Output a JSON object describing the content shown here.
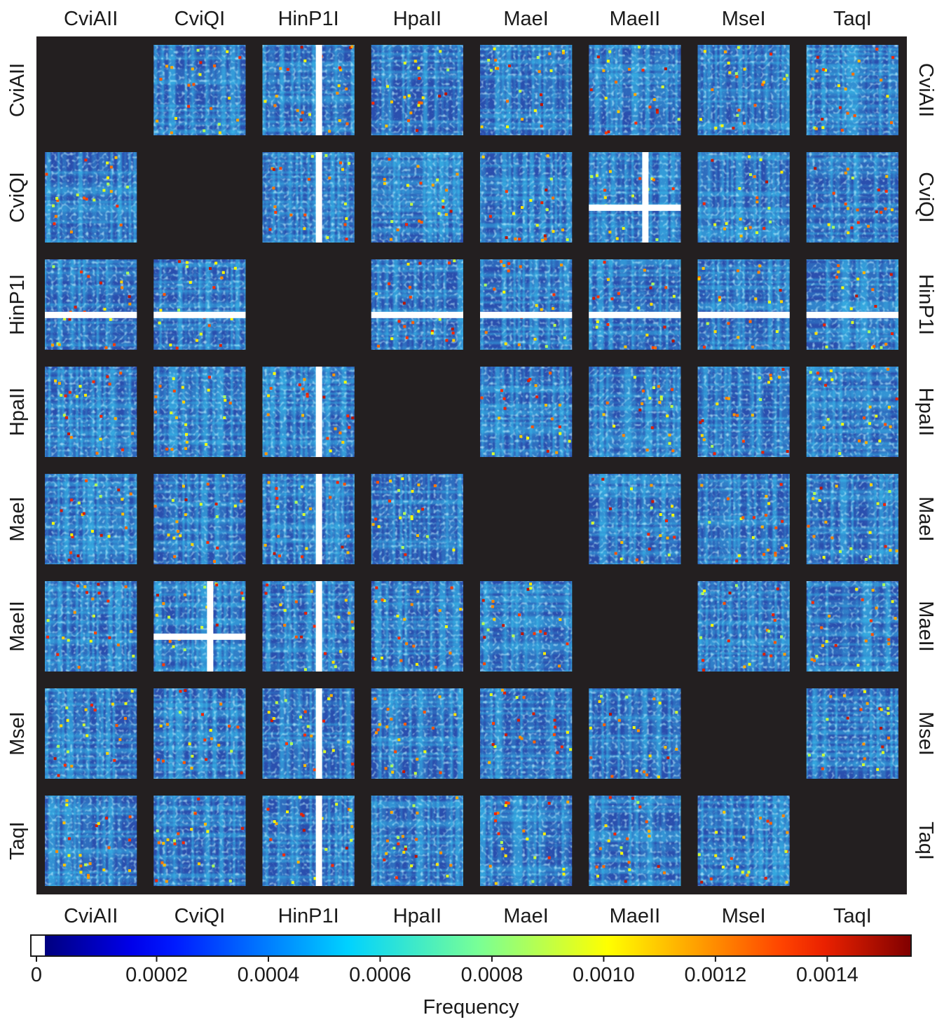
{
  "chart_data": {
    "type": "heatmap",
    "layout": "pairwise matrix of heatmaps (diagonal empty)",
    "enzymes": [
      "CviAII",
      "CviQI",
      "HinP1I",
      "HpaII",
      "MaeI",
      "MaeII",
      "MseI",
      "TaqI"
    ],
    "top_labels": [
      "CviAII",
      "CviQI",
      "HinP1I",
      "HpaII",
      "MaeI",
      "MaeII",
      "MseI",
      "TaqI"
    ],
    "bottom_labels": [
      "CviAII",
      "CviQI",
      "HinP1I",
      "HpaII",
      "MaeI",
      "MaeII",
      "MseI",
      "TaqI"
    ],
    "left_labels": [
      "CviAII",
      "CviQI",
      "HinP1I",
      "HpaII",
      "MaeI",
      "MaeII",
      "MseI",
      "TaqI"
    ],
    "right_labels": [
      "CviAII",
      "CviQI",
      "HinP1I",
      "HpaII",
      "MaeI",
      "MaeII",
      "MseI",
      "TaqI"
    ],
    "background_color": "#231f20",
    "colorbar": {
      "label": "Frequency",
      "range": [
        0,
        0.00155
      ],
      "zero_color": "#ffffff",
      "colormap": "jet",
      "ticks": [
        0,
        0.0002,
        0.0004,
        0.0006,
        0.0008,
        0.001,
        0.0012,
        0.0014
      ],
      "tick_labels": [
        "0",
        "0.0002",
        "0.0004",
        "0.0006",
        "0.0008",
        "0.0010",
        "0.0012",
        "0.0014"
      ]
    },
    "thick_gap_lines": [
      {
        "panel": "CviAII-HinP1I",
        "orientation": "vertical"
      },
      {
        "panel": "CviQI-HinP1I",
        "orientation": "vertical"
      },
      {
        "panel": "CviQI-MaeII",
        "orientation": "vertical"
      },
      {
        "panel": "CviQI-MaeII",
        "orientation": "horizontal"
      },
      {
        "panel": "HinP1I-CviAII",
        "orientation": "horizontal"
      },
      {
        "panel": "HinP1I-CviQI",
        "orientation": "horizontal"
      },
      {
        "panel": "HinP1I-HpaII",
        "orientation": "horizontal"
      },
      {
        "panel": "HinP1I-MaeI",
        "orientation": "horizontal"
      },
      {
        "panel": "HinP1I-MaeII",
        "orientation": "horizontal"
      },
      {
        "panel": "HinP1I-MseI",
        "orientation": "horizontal"
      },
      {
        "panel": "HinP1I-TaqI",
        "orientation": "horizontal"
      },
      {
        "panel": "HpaII-HinP1I",
        "orientation": "vertical"
      },
      {
        "panel": "MaeI-HinP1I",
        "orientation": "vertical"
      },
      {
        "panel": "MaeII-CviQI",
        "orientation": "vertical"
      },
      {
        "panel": "MaeII-CviQI",
        "orientation": "horizontal"
      },
      {
        "panel": "MaeII-HinP1I",
        "orientation": "vertical"
      },
      {
        "panel": "MseI-HinP1I",
        "orientation": "vertical"
      },
      {
        "panel": "TaqI-HinP1I",
        "orientation": "vertical"
      }
    ],
    "grid": false,
    "legend": "colorbar at bottom"
  }
}
